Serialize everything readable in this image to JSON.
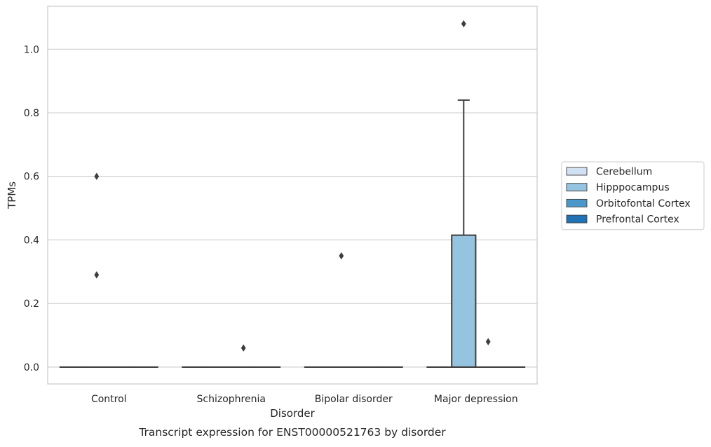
{
  "chart_data": {
    "type": "box",
    "title": "",
    "caption": "Transcript expression for ENST00000521763 by disorder",
    "xlabel": "Disorder",
    "ylabel": "TPMs",
    "ylim": [
      -0.053,
      1.135
    ],
    "yticks": [
      "0.0",
      "0.2",
      "0.4",
      "0.6",
      "0.8",
      "1.0"
    ],
    "grid": "horizontal",
    "legend_placement": "right",
    "categories": [
      "Control",
      "Schizophrenia",
      "Bipolar disorder",
      "Major depression"
    ],
    "series": [
      {
        "name": "Cerebellum",
        "color": "#d0e1f2",
        "boxes": [
          {
            "category": "Control",
            "q1": 0,
            "median": 0,
            "q3": 0,
            "whisker_low": 0,
            "whisker_high": 0,
            "outliers": []
          },
          {
            "category": "Schizophrenia",
            "q1": 0,
            "median": 0,
            "q3": 0,
            "whisker_low": 0,
            "whisker_high": 0,
            "outliers": []
          },
          {
            "category": "Bipolar disorder",
            "q1": 0,
            "median": 0,
            "q3": 0,
            "whisker_low": 0,
            "whisker_high": 0,
            "outliers": []
          },
          {
            "category": "Major depression",
            "q1": 0,
            "median": 0,
            "q3": 0,
            "whisker_low": 0,
            "whisker_high": 0,
            "outliers": []
          }
        ]
      },
      {
        "name": "Hipppocampus",
        "color": "#94c4df",
        "boxes": [
          {
            "category": "Control",
            "q1": 0,
            "median": 0,
            "q3": 0,
            "whisker_low": 0,
            "whisker_high": 0,
            "outliers": [
              0.6,
              0.29
            ]
          },
          {
            "category": "Schizophrenia",
            "q1": 0,
            "median": 0,
            "q3": 0,
            "whisker_low": 0,
            "whisker_high": 0,
            "outliers": []
          },
          {
            "category": "Bipolar disorder",
            "q1": 0,
            "median": 0,
            "q3": 0,
            "whisker_low": 0,
            "whisker_high": 0,
            "outliers": [
              0.35
            ]
          },
          {
            "category": "Major depression",
            "q1": 0,
            "median": 0,
            "q3": 0.415,
            "whisker_low": 0,
            "whisker_high": 0.84,
            "outliers": [
              1.08
            ]
          }
        ]
      },
      {
        "name": "Orbitofontal Cortex",
        "color": "#4a98c9",
        "boxes": [
          {
            "category": "Control",
            "q1": 0,
            "median": 0,
            "q3": 0,
            "whisker_low": 0,
            "whisker_high": 0,
            "outliers": []
          },
          {
            "category": "Schizophrenia",
            "q1": 0,
            "median": 0,
            "q3": 0,
            "whisker_low": 0,
            "whisker_high": 0,
            "outliers": [
              0.06
            ]
          },
          {
            "category": "Bipolar disorder",
            "q1": 0,
            "median": 0,
            "q3": 0,
            "whisker_low": 0,
            "whisker_high": 0,
            "outliers": []
          },
          {
            "category": "Major depression",
            "q1": 0,
            "median": 0,
            "q3": 0,
            "whisker_low": 0,
            "whisker_high": 0,
            "outliers": [
              0.08
            ]
          }
        ]
      },
      {
        "name": "Prefrontal Cortex",
        "color": "#2171b5",
        "boxes": [
          {
            "category": "Control",
            "q1": 0,
            "median": 0,
            "q3": 0,
            "whisker_low": 0,
            "whisker_high": 0,
            "outliers": []
          },
          {
            "category": "Schizophrenia",
            "q1": 0,
            "median": 0,
            "q3": 0,
            "whisker_low": 0,
            "whisker_high": 0,
            "outliers": []
          },
          {
            "category": "Bipolar disorder",
            "q1": 0,
            "median": 0,
            "q3": 0,
            "whisker_low": 0,
            "whisker_high": 0,
            "outliers": []
          },
          {
            "category": "Major depression",
            "q1": 0,
            "median": 0,
            "q3": 0,
            "whisker_low": 0,
            "whisker_high": 0,
            "outliers": []
          }
        ]
      }
    ]
  }
}
